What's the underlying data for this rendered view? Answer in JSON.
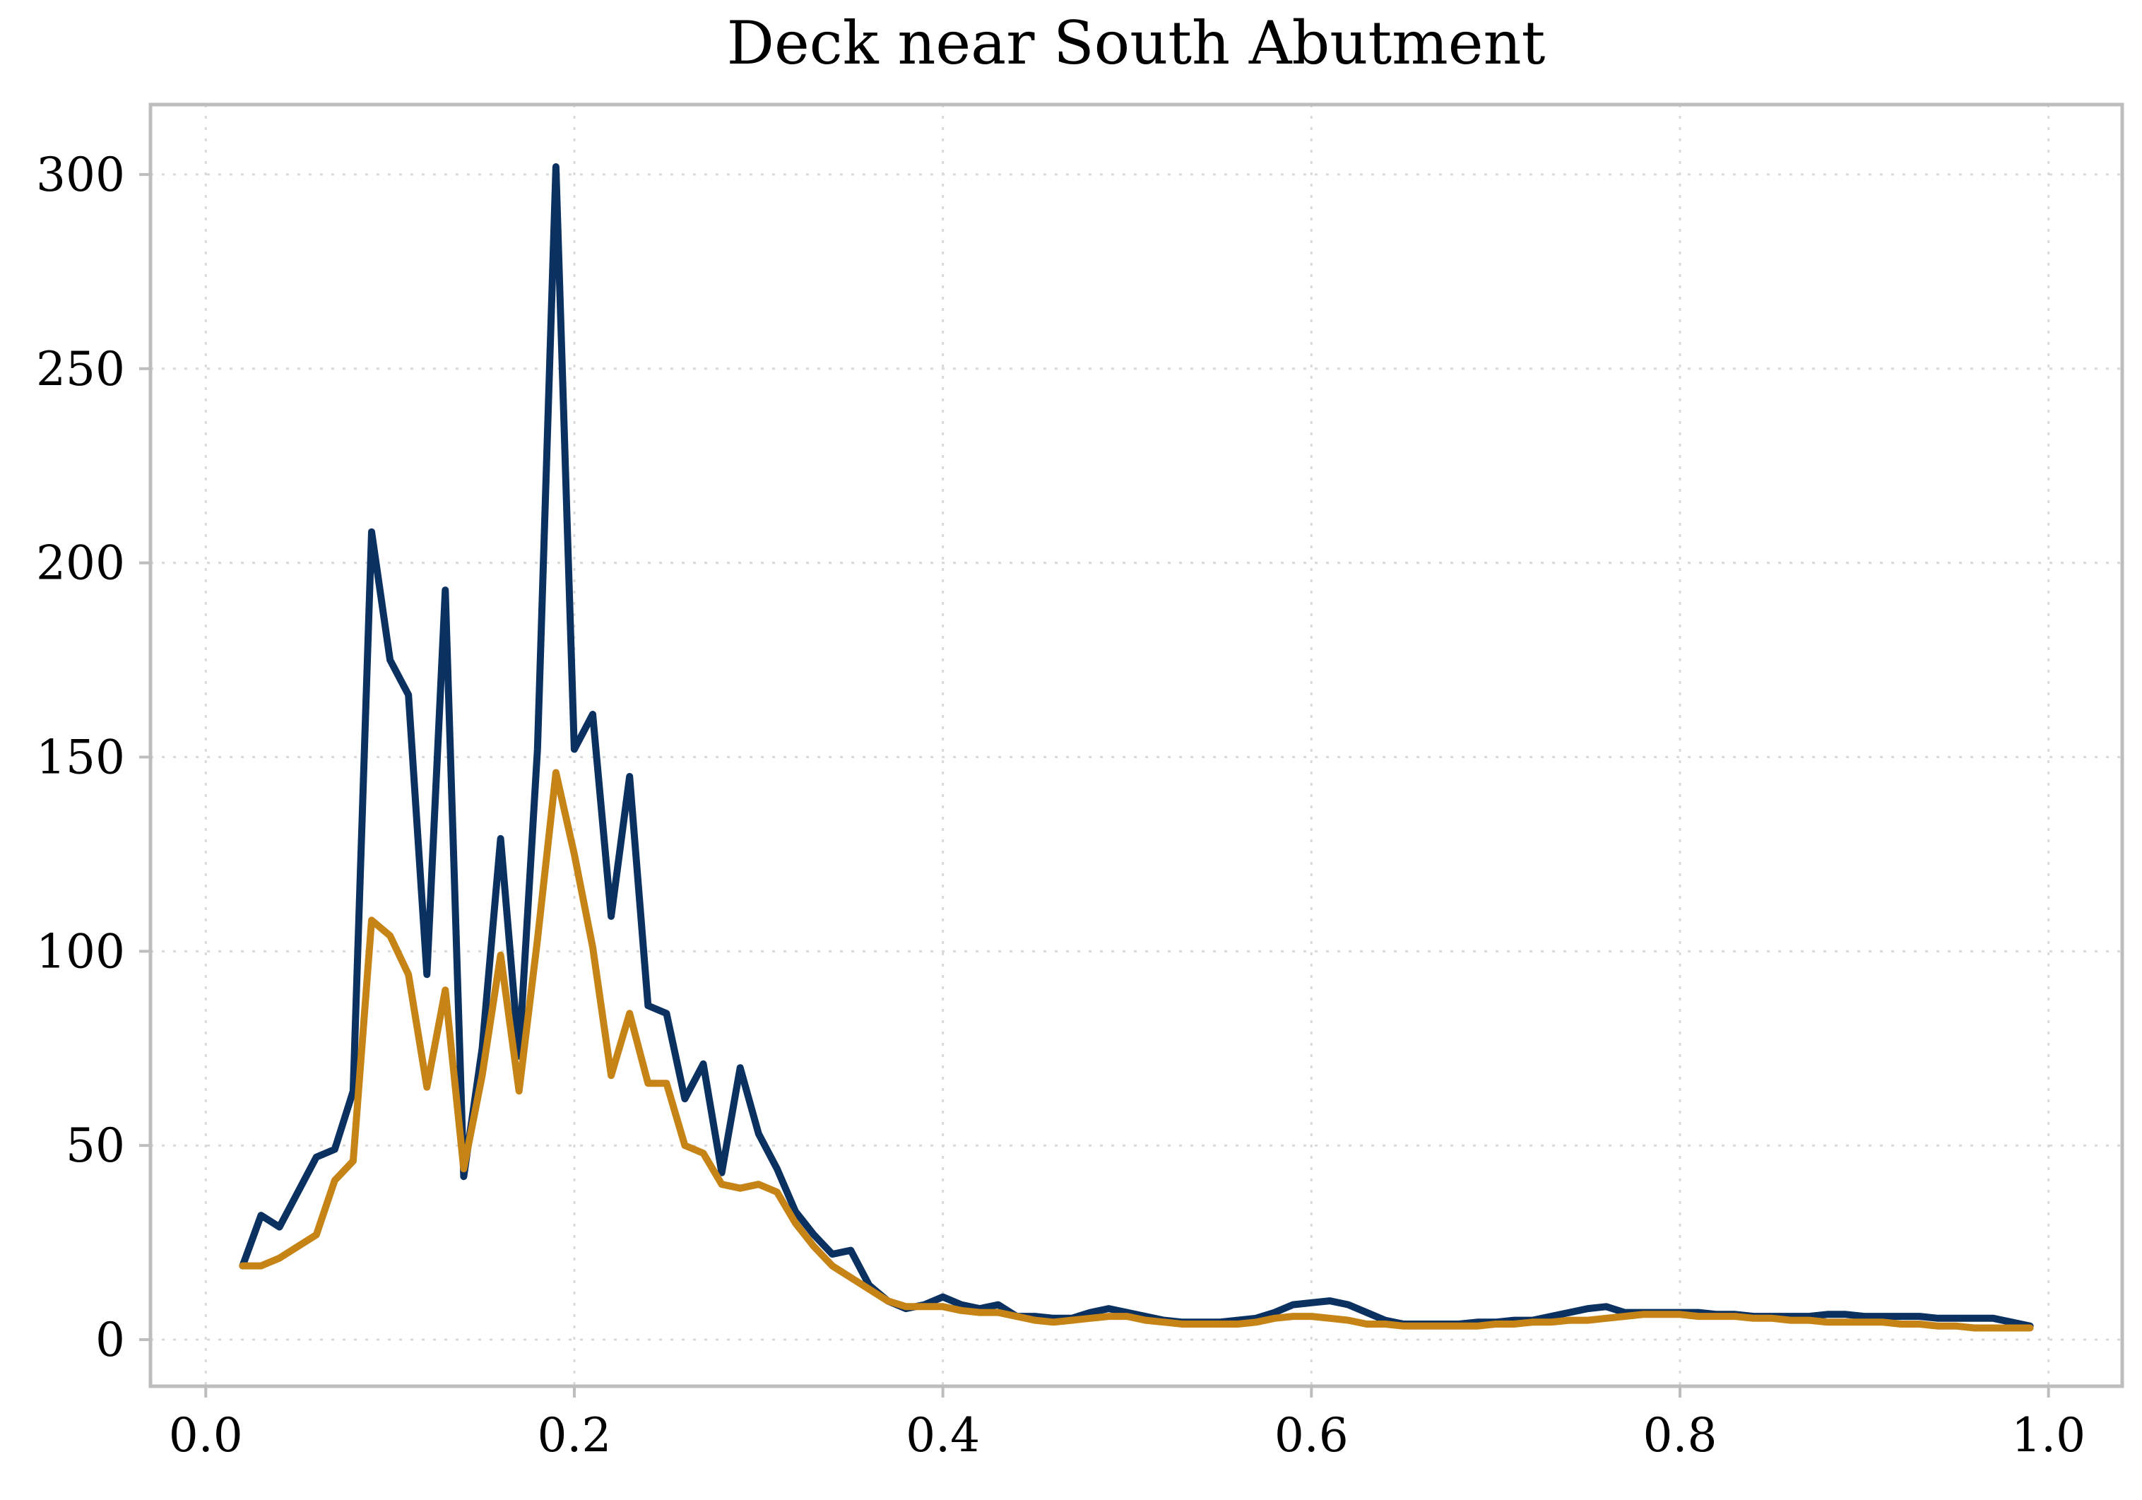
{
  "chart_data": {
    "type": "line",
    "title": "Deck near South Abutment",
    "xlabel": "",
    "ylabel": "",
    "xlim": [
      -0.03,
      1.04
    ],
    "ylim": [
      -12,
      318
    ],
    "xticks": [
      0.0,
      0.2,
      0.4,
      0.6,
      0.8,
      1.0
    ],
    "xtick_labels": [
      "0.0",
      "0.2",
      "0.4",
      "0.6",
      "0.8",
      "1.0"
    ],
    "yticks": [
      0,
      50,
      100,
      150,
      200,
      250,
      300
    ],
    "ytick_labels": [
      "0",
      "50",
      "100",
      "150",
      "200",
      "250",
      "300"
    ],
    "grid": true,
    "legend": "none",
    "x": [
      0.02,
      0.03,
      0.04,
      0.05,
      0.06,
      0.07,
      0.08,
      0.09,
      0.1,
      0.11,
      0.12,
      0.13,
      0.14,
      0.15,
      0.16,
      0.17,
      0.18,
      0.19,
      0.2,
      0.21,
      0.22,
      0.23,
      0.24,
      0.25,
      0.26,
      0.27,
      0.28,
      0.29,
      0.3,
      0.31,
      0.32,
      0.33,
      0.34,
      0.35,
      0.36,
      0.37,
      0.38,
      0.39,
      0.4,
      0.41,
      0.42,
      0.43,
      0.44,
      0.45,
      0.46,
      0.47,
      0.48,
      0.49,
      0.5,
      0.51,
      0.52,
      0.53,
      0.54,
      0.55,
      0.56,
      0.57,
      0.58,
      0.59,
      0.6,
      0.61,
      0.62,
      0.63,
      0.64,
      0.65,
      0.66,
      0.67,
      0.68,
      0.69,
      0.7,
      0.71,
      0.72,
      0.73,
      0.74,
      0.75,
      0.76,
      0.77,
      0.78,
      0.79,
      0.8,
      0.81,
      0.82,
      0.83,
      0.84,
      0.85,
      0.86,
      0.87,
      0.88,
      0.89,
      0.9,
      0.91,
      0.92,
      0.93,
      0.94,
      0.95,
      0.96,
      0.97,
      0.98,
      0.99
    ],
    "series": [
      {
        "color": "#0b3161",
        "values": [
          19,
          32,
          29,
          38,
          47,
          49,
          64,
          208,
          175,
          166,
          94,
          193,
          42,
          75,
          129,
          73,
          152,
          302,
          152,
          161,
          109,
          145,
          86,
          84,
          62,
          71,
          43,
          70,
          53,
          44,
          33,
          27,
          22,
          23,
          14,
          10,
          8,
          9,
          11,
          9,
          8,
          9,
          6,
          6,
          5.5,
          5.5,
          7,
          8,
          7,
          6,
          5,
          4.5,
          4.5,
          4.5,
          5,
          5.5,
          7,
          9,
          9.5,
          10,
          9,
          7,
          5,
          4,
          4,
          4,
          4,
          4.5,
          4.5,
          5,
          5,
          6,
          7,
          8,
          8.5,
          7,
          7,
          7,
          7,
          7,
          6.5,
          6.5,
          6,
          6,
          6,
          6,
          6.5,
          6.5,
          6,
          6,
          6,
          6,
          5.5,
          5.5,
          5.5,
          5.5,
          4.5,
          3.5
        ]
      },
      {
        "color": "#c68416",
        "values": [
          19,
          19,
          21,
          24,
          27,
          41,
          46,
          108,
          104,
          94,
          65,
          90,
          44,
          68,
          99,
          64,
          103,
          146,
          125,
          101,
          68,
          84,
          66,
          66,
          50,
          48,
          40,
          39,
          40,
          38,
          30,
          24,
          19,
          16,
          13,
          10,
          8.5,
          8.5,
          8.5,
          7.5,
          7,
          7,
          6,
          5,
          4.5,
          5,
          5.5,
          6,
          6,
          5,
          4.5,
          4,
          4,
          4,
          4,
          4.5,
          5.5,
          6,
          6,
          5.5,
          5,
          4,
          4,
          3.5,
          3.5,
          3.5,
          3.5,
          3.5,
          4,
          4,
          4.5,
          4.5,
          5,
          5,
          5.5,
          6,
          6.5,
          6.5,
          6.5,
          6,
          6,
          6,
          5.5,
          5.5,
          5,
          5,
          4.5,
          4.5,
          4.5,
          4.5,
          4,
          4,
          3.5,
          3.5,
          3,
          3,
          3,
          3
        ]
      }
    ]
  }
}
